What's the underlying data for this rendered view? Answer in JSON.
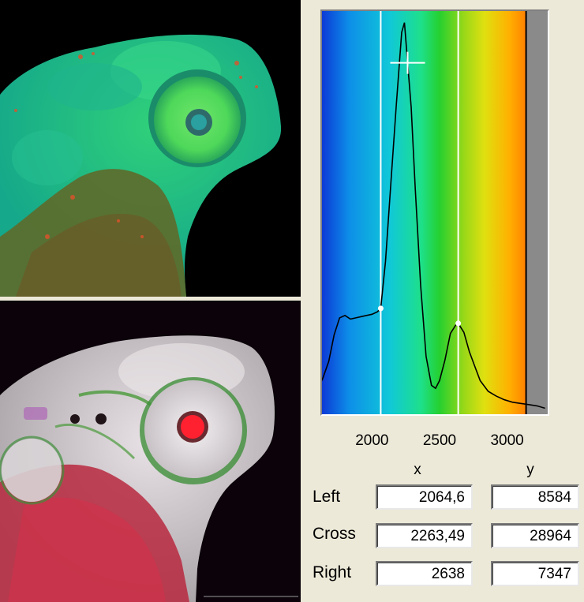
{
  "chart_data": {
    "type": "line",
    "x": [
      1630,
      1680,
      1720,
      1760,
      1800,
      1840,
      1880,
      1920,
      1960,
      2000,
      2040,
      2064.6,
      2100,
      2140,
      2180,
      2220,
      2240,
      2263.49,
      2290,
      2320,
      2360,
      2400,
      2440,
      2470,
      2500,
      2540,
      2580,
      2620,
      2638,
      2680,
      2720,
      2760,
      2800,
      2860,
      2920,
      2980,
      3040,
      3100,
      3160,
      3220,
      3280
    ],
    "values": [
      2600,
      4200,
      6400,
      7800,
      8000,
      7700,
      7800,
      7900,
      8000,
      8100,
      8300,
      8584,
      12500,
      19000,
      25500,
      31500,
      32300,
      28964,
      25300,
      18500,
      10500,
      4600,
      2200,
      1950,
      2600,
      4300,
      6500,
      7200,
      7347,
      6600,
      5000,
      3800,
      2600,
      1700,
      1300,
      1000,
      800,
      700,
      600,
      500,
      300
    ],
    "xlim": [
      1630,
      3300
    ],
    "ylim": [
      0,
      33000
    ],
    "xticks": [
      2000,
      2500,
      3000
    ],
    "grid": false
  },
  "markers": {
    "left_x": 2064.6,
    "cross_x": 2263.49,
    "cross_y": 28964,
    "right_x": 2638,
    "cutoff_x": 3140
  },
  "table": {
    "col_x": "x",
    "col_y": "y",
    "rows": [
      {
        "label": "Left",
        "x": "2064,6",
        "y": "8584"
      },
      {
        "label": "Cross",
        "x": "2263,49",
        "y": "28964"
      },
      {
        "label": "Right",
        "x": "2638",
        "y": "7347"
      }
    ]
  },
  "colors": {
    "spectrum_start": "#1040d8",
    "spectrum_mid": "#20d020",
    "spectrum_end": "#ff5a00",
    "cutoff_fill": "#8a8a8a",
    "curve": "#000000",
    "marker_line": "#ffffff"
  }
}
